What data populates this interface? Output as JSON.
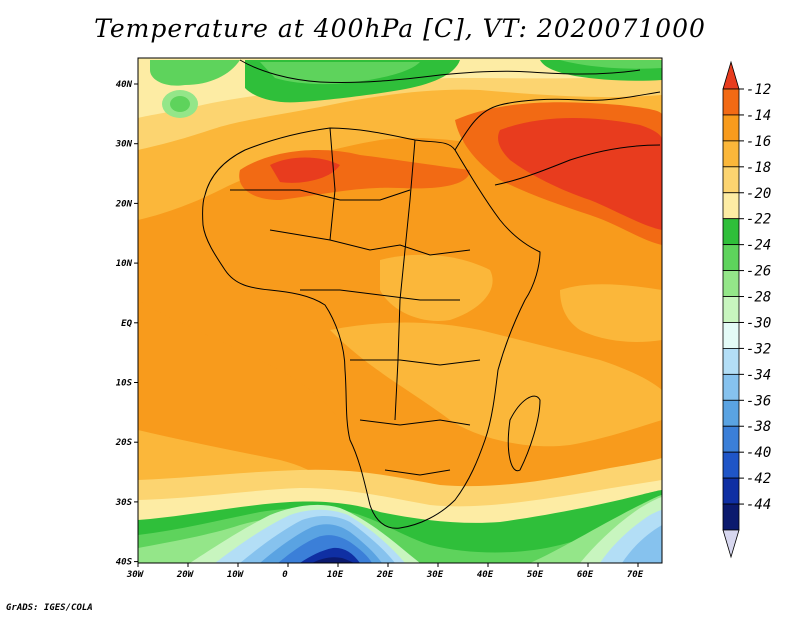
{
  "title": "Temperature at 400hPa [C], VT: 2020071000",
  "footer": "GrADS: IGES/COLA",
  "axes": {
    "lon_labels": [
      "30W",
      "20W",
      "10W",
      "0",
      "10E",
      "20E",
      "30E",
      "40E",
      "50E",
      "60E",
      "70E"
    ],
    "lat_labels": [
      "40N",
      "30N",
      "20N",
      "10N",
      "EQ",
      "10S",
      "20S",
      "30S",
      "40S"
    ]
  },
  "colorbar": {
    "labels": [
      "-12",
      "-14",
      "-16",
      "-18",
      "-20",
      "-22",
      "-24",
      "-26",
      "-28",
      "-30",
      "-32",
      "-34",
      "-36",
      "-38",
      "-40",
      "-42",
      "-44"
    ],
    "colors": [
      "#e83c1e",
      "#f26a14",
      "#f89b1c",
      "#fbb73a",
      "#fcd470",
      "#fdeca4",
      "#2fbf3a",
      "#5ed35c",
      "#94e689",
      "#c8f5bf",
      "#e4fbf7",
      "#b3def6",
      "#86c2ee",
      "#5aa3e2",
      "#3b7fd8",
      "#1f55c7",
      "#0f2fa3",
      "#0b1a6e",
      "#d7d7ef"
    ]
  }
}
